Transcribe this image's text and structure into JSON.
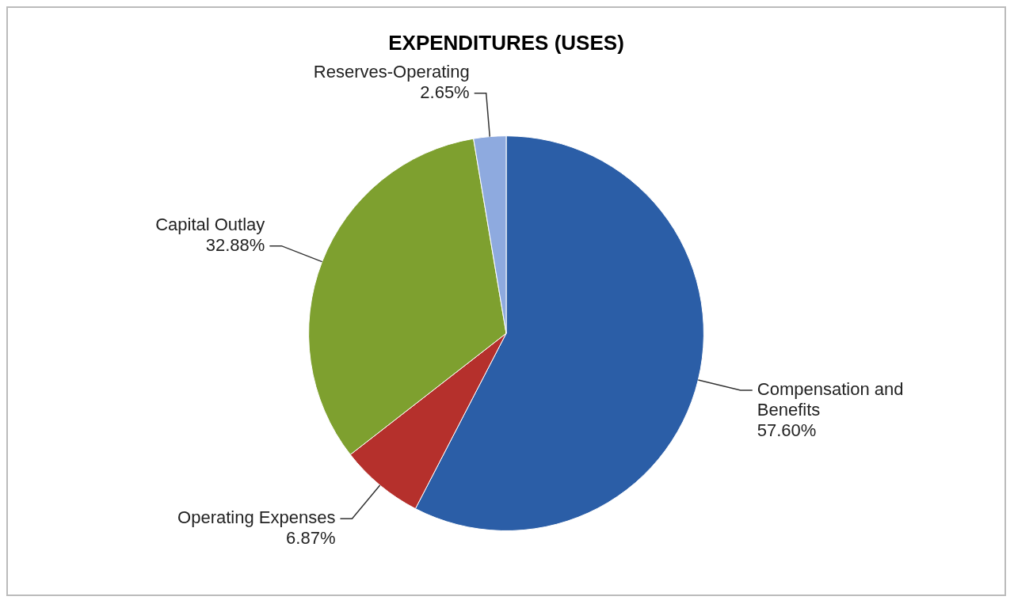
{
  "chart_data": {
    "type": "pie",
    "title": "EXPENDITURES (USES)",
    "categories": [
      "Compensation and Benefits",
      "Operating Expenses",
      "Capital Outlay",
      "Reserves-Operating"
    ],
    "values": [
      57.6,
      6.87,
      32.88,
      2.65
    ],
    "colors": [
      "#2b5ea7",
      "#b5302c",
      "#7ea02f",
      "#8eaadf"
    ],
    "value_labels": [
      "57.60%",
      "6.87%",
      "32.88%",
      "2.65%"
    ],
    "legend": false
  }
}
